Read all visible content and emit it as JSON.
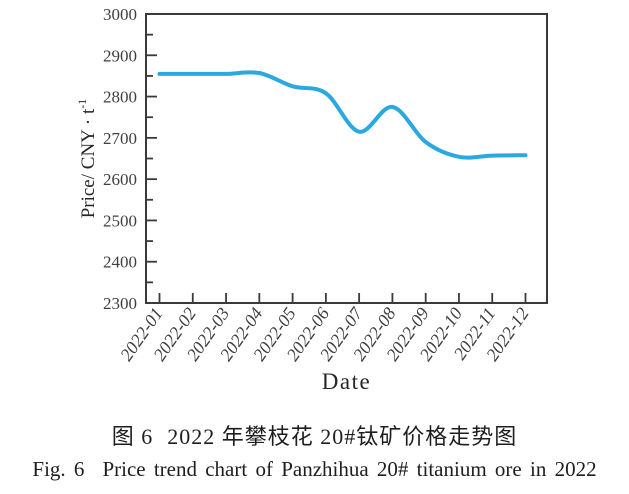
{
  "figure": {
    "caption_zh_label": "图 6",
    "caption_zh_title": "2022 年攀枝花 20#钛矿价格走势图",
    "caption_en_label": "Fig. 6",
    "caption_en_title": "Price trend chart of Panzhihua 20# titanium ore in 2022"
  },
  "chart_data": {
    "type": "line",
    "title": "",
    "xlabel": "Date",
    "ylabel": "Price/ CNY · t⁻¹",
    "ylabel_base": "Price/ CNY · t",
    "ylabel_superscript": "-1",
    "categories": [
      "2022-01",
      "2022-02",
      "2022-03",
      "2022-04",
      "2022-05",
      "2022-06",
      "2022-07",
      "2022-08",
      "2022-09",
      "2022-10",
      "2022-11",
      "2022-12"
    ],
    "values": [
      2855,
      2855,
      2855,
      2857,
      2825,
      2808,
      2715,
      2775,
      2690,
      2654,
      2657,
      2658
    ],
    "ylim": [
      2300,
      3000
    ],
    "yticks": [
      2300,
      2400,
      2500,
      2600,
      2700,
      2800,
      2900,
      3000
    ],
    "minor_ytick_step": 50,
    "x_tick_rotation": -55,
    "grid": false,
    "smooth": true,
    "line_color": "#29A9E0",
    "axis_color": "#3a3a3a",
    "tick_label_color": "#3f3f3f"
  }
}
